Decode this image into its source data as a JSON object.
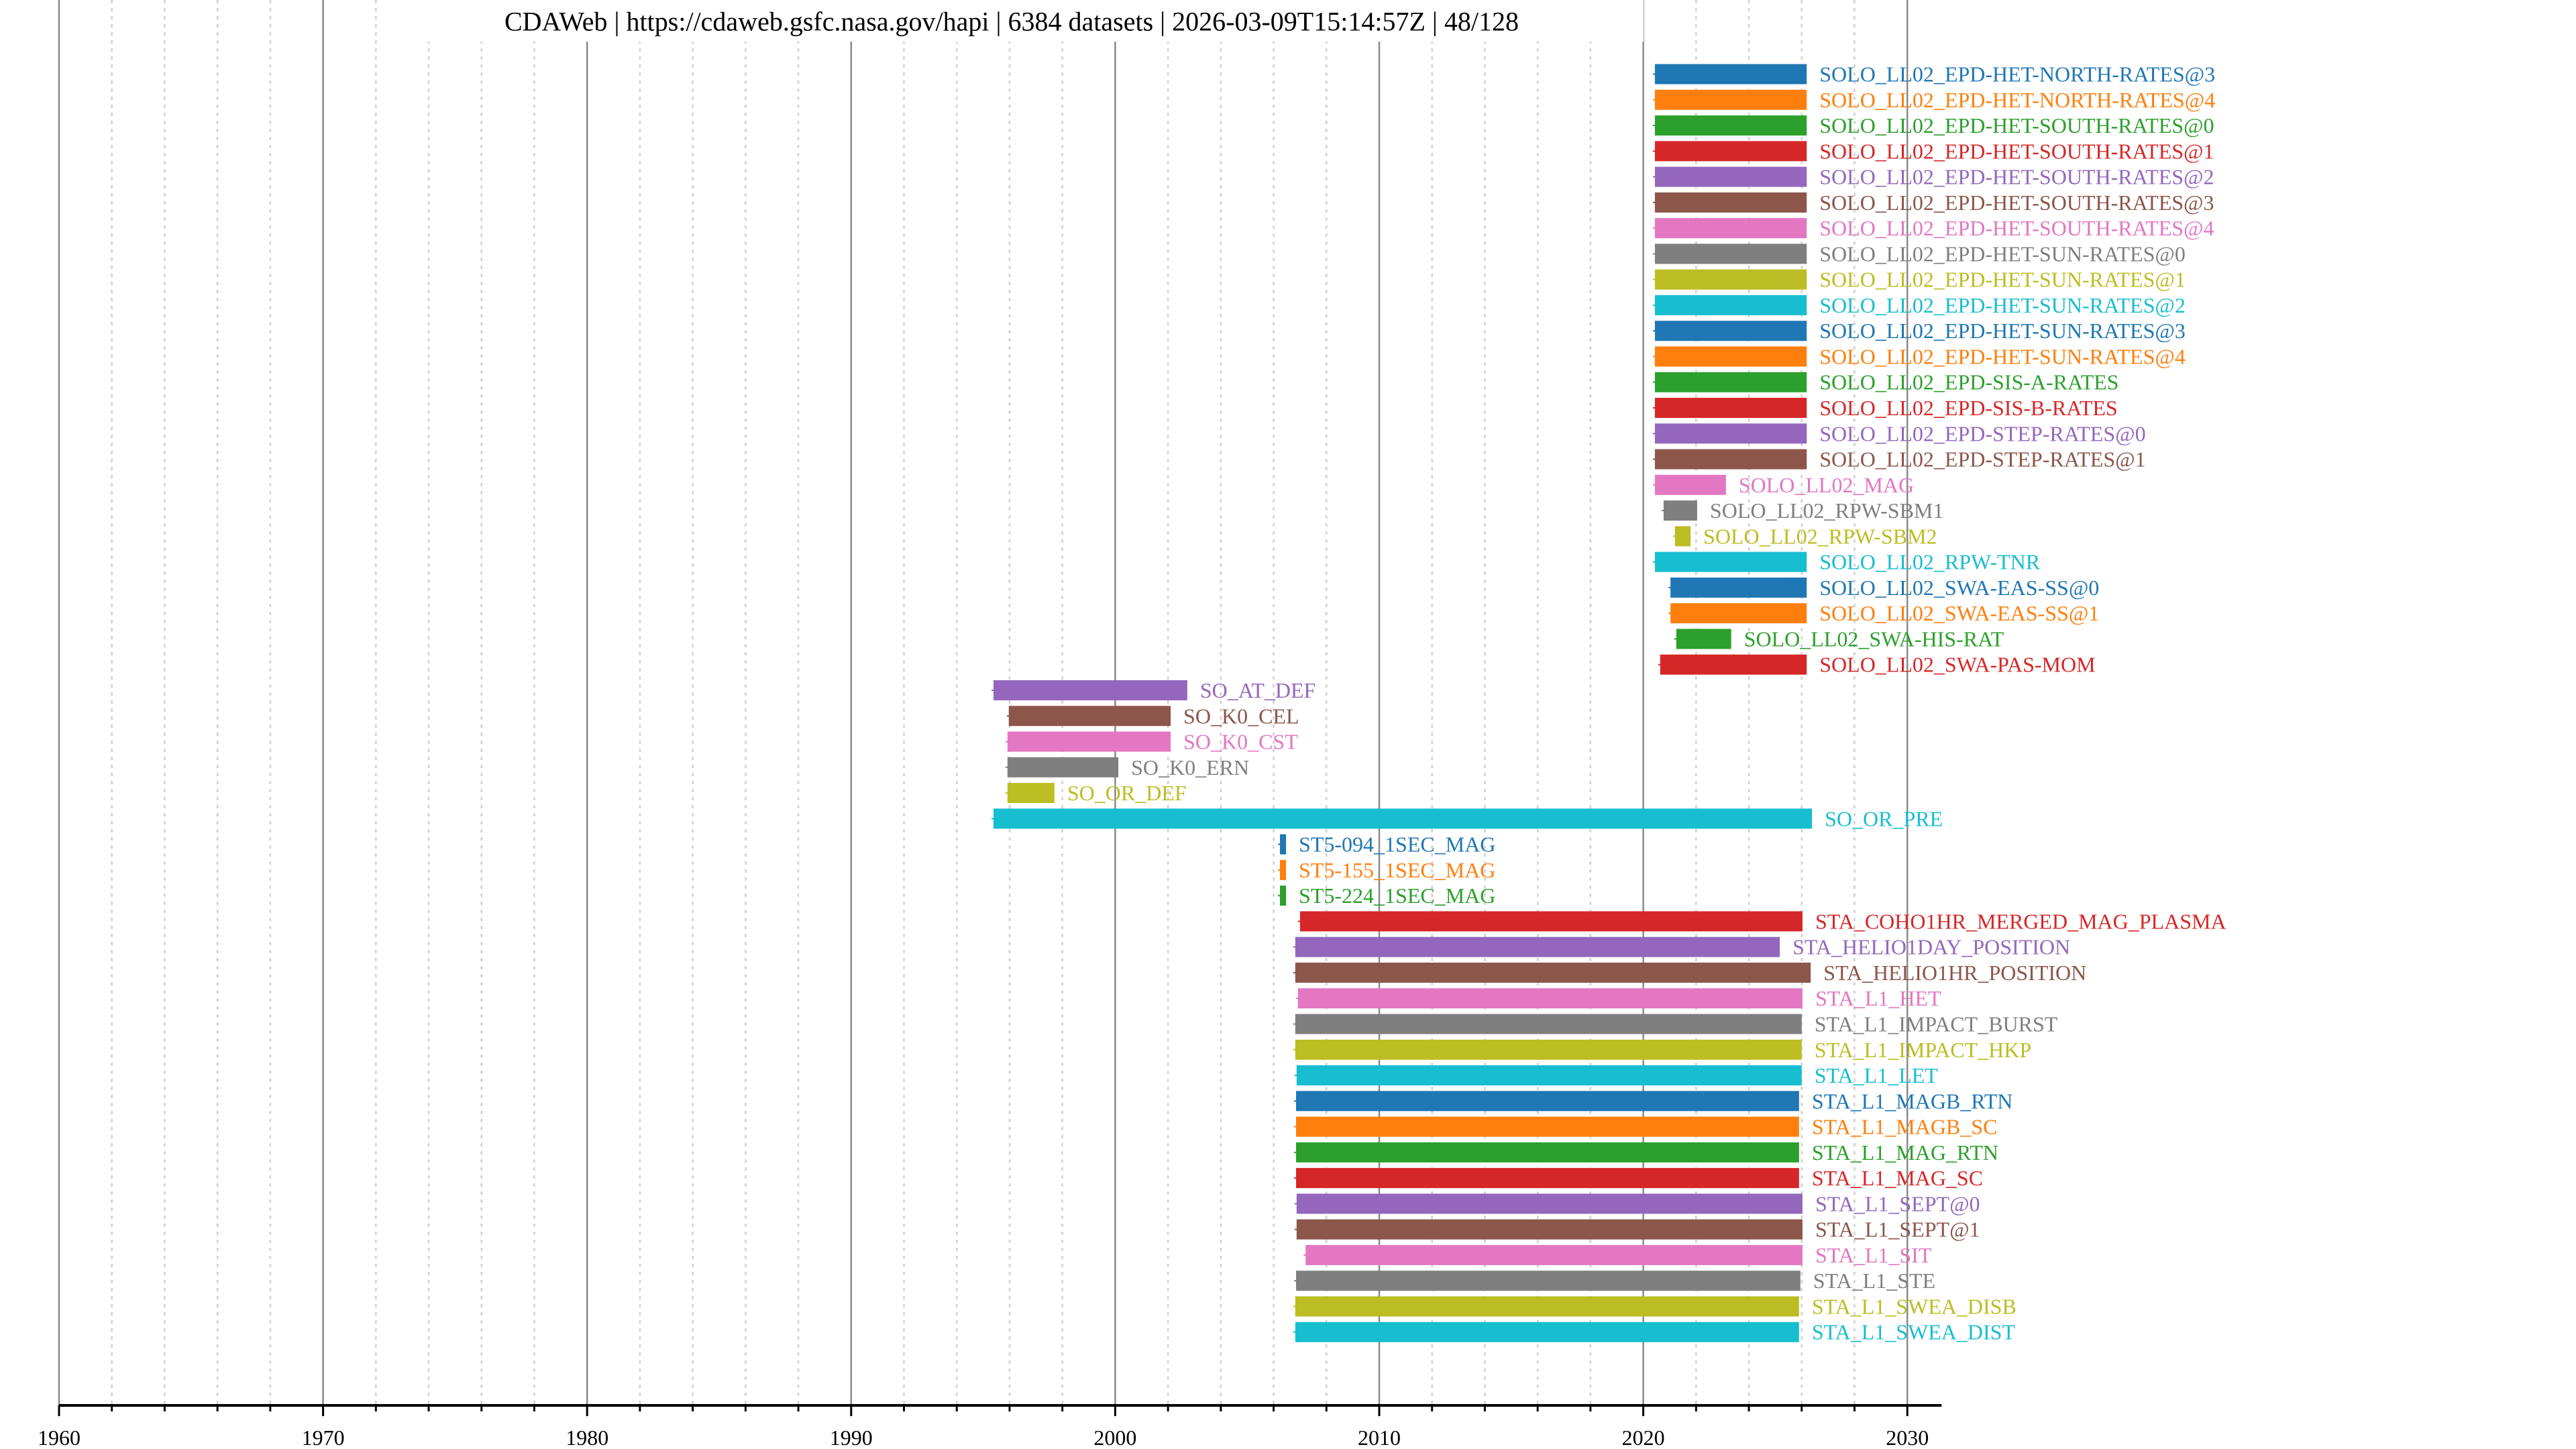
{
  "title": {
    "source": "CDAWeb",
    "url": "https://cdaweb.gsfc.nasa.gov/hapi",
    "dataset_count": "6384 datasets",
    "timestamp": "2026-03-09T15:14:57Z",
    "page": "48/128",
    "text": "CDAWeb | https://cdaweb.gsfc.nasa.gov/hapi | 6384 datasets | 2026-03-09T15:14:57Z | 48/128"
  },
  "palette": [
    "#1f77b4",
    "#ff7f0e",
    "#2ca02c",
    "#d62728",
    "#9467bd",
    "#8c564b",
    "#e377c2",
    "#7f7f7f",
    "#bcbd22",
    "#17becf"
  ],
  "chart_data": {
    "type": "bar",
    "orientation": "horizontal-timeline",
    "title": "CDAWeb | https://cdaweb.gsfc.nasa.gov/hapi | 6384 datasets | 2026-03-09T15:14:57Z | 48/128",
    "xlabel": "",
    "ylabel": "",
    "xlim": [
      1960,
      2031.3
    ],
    "x_ticks": [
      "1960",
      "1970",
      "1980",
      "1990",
      "2000",
      "2010",
      "2020",
      "2030"
    ],
    "x_tick_values": [
      1960,
      1970,
      1980,
      1990,
      2000,
      2010,
      2020,
      2030
    ],
    "minor_tick_step": 2,
    "grid": true,
    "legend": "none (labels beside bars)",
    "series": [
      {
        "name": "SOLO_LL02_EPD-HET-NORTH-RATES@3",
        "start": 2020.44,
        "stop": 2026.19
      },
      {
        "name": "SOLO_LL02_EPD-HET-NORTH-RATES@4",
        "start": 2020.44,
        "stop": 2026.19
      },
      {
        "name": "SOLO_LL02_EPD-HET-SOUTH-RATES@0",
        "start": 2020.44,
        "stop": 2026.19
      },
      {
        "name": "SOLO_LL02_EPD-HET-SOUTH-RATES@1",
        "start": 2020.44,
        "stop": 2026.19
      },
      {
        "name": "SOLO_LL02_EPD-HET-SOUTH-RATES@2",
        "start": 2020.44,
        "stop": 2026.19
      },
      {
        "name": "SOLO_LL02_EPD-HET-SOUTH-RATES@3",
        "start": 2020.44,
        "stop": 2026.19
      },
      {
        "name": "SOLO_LL02_EPD-HET-SOUTH-RATES@4",
        "start": 2020.44,
        "stop": 2026.19
      },
      {
        "name": "SOLO_LL02_EPD-HET-SUN-RATES@0",
        "start": 2020.44,
        "stop": 2026.19
      },
      {
        "name": "SOLO_LL02_EPD-HET-SUN-RATES@1",
        "start": 2020.44,
        "stop": 2026.19
      },
      {
        "name": "SOLO_LL02_EPD-HET-SUN-RATES@2",
        "start": 2020.44,
        "stop": 2026.19
      },
      {
        "name": "SOLO_LL02_EPD-HET-SUN-RATES@3",
        "start": 2020.44,
        "stop": 2026.19
      },
      {
        "name": "SOLO_LL02_EPD-HET-SUN-RATES@4",
        "start": 2020.44,
        "stop": 2026.19
      },
      {
        "name": "SOLO_LL02_EPD-SIS-A-RATES",
        "start": 2020.44,
        "stop": 2026.19
      },
      {
        "name": "SOLO_LL02_EPD-SIS-B-RATES",
        "start": 2020.44,
        "stop": 2026.19
      },
      {
        "name": "SOLO_LL02_EPD-STEP-RATES@0",
        "start": 2020.44,
        "stop": 2026.19
      },
      {
        "name": "SOLO_LL02_EPD-STEP-RATES@1",
        "start": 2020.44,
        "stop": 2026.19
      },
      {
        "name": "SOLO_LL02_MAG",
        "start": 2020.44,
        "stop": 2023.13
      },
      {
        "name": "SOLO_LL02_RPW-SBM1",
        "start": 2020.77,
        "stop": 2022.04
      },
      {
        "name": "SOLO_LL02_RPW-SBM2",
        "start": 2021.2,
        "stop": 2021.79
      },
      {
        "name": "SOLO_LL02_RPW-TNR",
        "start": 2020.44,
        "stop": 2026.19
      },
      {
        "name": "SOLO_LL02_SWA-EAS-SS@0",
        "start": 2021.03,
        "stop": 2026.19
      },
      {
        "name": "SOLO_LL02_SWA-EAS-SS@1",
        "start": 2021.03,
        "stop": 2026.19
      },
      {
        "name": "SOLO_LL02_SWA-HIS-RAT",
        "start": 2021.25,
        "stop": 2023.33
      },
      {
        "name": "SOLO_LL02_SWA-PAS-MOM",
        "start": 2020.64,
        "stop": 2026.19
      },
      {
        "name": "SO_AT_DEF",
        "start": 1995.39,
        "stop": 2002.73
      },
      {
        "name": "SO_K0_CEL",
        "start": 1995.97,
        "stop": 2002.1
      },
      {
        "name": "SO_K0_CST",
        "start": 1995.92,
        "stop": 2002.1
      },
      {
        "name": "SO_K0_ERN",
        "start": 1995.92,
        "stop": 2000.12
      },
      {
        "name": "SO_OR_DEF",
        "start": 1995.92,
        "stop": 1997.7
      },
      {
        "name": "SO_OR_PRE",
        "start": 1995.39,
        "stop": 2026.39
      },
      {
        "name": "ST5-094_1SEC_MAG",
        "start": 2006.24,
        "stop": 2006.47
      },
      {
        "name": "ST5-155_1SEC_MAG",
        "start": 2006.24,
        "stop": 2006.47
      },
      {
        "name": "ST5-224_1SEC_MAG",
        "start": 2006.24,
        "stop": 2006.47
      },
      {
        "name": "STA_COHO1HR_MERGED_MAG_PLASMA",
        "start": 2007.0,
        "stop": 2026.03
      },
      {
        "name": "STA_HELIO1DAY_POSITION",
        "start": 2006.82,
        "stop": 2025.17
      },
      {
        "name": "STA_HELIO1HR_POSITION",
        "start": 2006.82,
        "stop": 2026.34
      },
      {
        "name": "STA_L1_HET",
        "start": 2006.92,
        "stop": 2026.03
      },
      {
        "name": "STA_L1_IMPACT_BURST",
        "start": 2006.82,
        "stop": 2026.0
      },
      {
        "name": "STA_L1_IMPACT_HKP",
        "start": 2006.82,
        "stop": 2026.0
      },
      {
        "name": "STA_L1_LET",
        "start": 2006.87,
        "stop": 2026.0
      },
      {
        "name": "STA_L1_MAGB_RTN",
        "start": 2006.85,
        "stop": 2025.9
      },
      {
        "name": "STA_L1_MAGB_SC",
        "start": 2006.85,
        "stop": 2025.9
      },
      {
        "name": "STA_L1_MAG_RTN",
        "start": 2006.85,
        "stop": 2025.9
      },
      {
        "name": "STA_L1_MAG_SC",
        "start": 2006.85,
        "stop": 2025.9
      },
      {
        "name": "STA_L1_SEPT@0",
        "start": 2006.87,
        "stop": 2026.03
      },
      {
        "name": "STA_L1_SEPT@1",
        "start": 2006.87,
        "stop": 2026.03
      },
      {
        "name": "STA_L1_SIT",
        "start": 2007.21,
        "stop": 2026.03
      },
      {
        "name": "STA_L1_STE",
        "start": 2006.85,
        "stop": 2025.95
      },
      {
        "name": "STA_L1_SWEA_DISB",
        "start": 2006.82,
        "stop": 2025.9
      },
      {
        "name": "STA_L1_SWEA_DIST",
        "start": 2006.82,
        "stop": 2025.9
      }
    ]
  }
}
